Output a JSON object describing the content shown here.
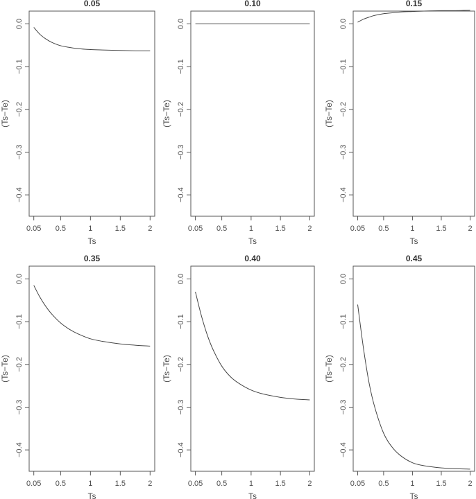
{
  "chart_data": [
    {
      "type": "line",
      "title": "0.05",
      "xlabel": "Ts",
      "ylabel": "(Ts−Te)",
      "xlim": [
        0.05,
        2
      ],
      "ylim": [
        -0.45,
        0.03
      ],
      "x_ticks": [
        0.05,
        0.5,
        1,
        1.5,
        2
      ],
      "x_tick_labels": [
        "0.05",
        "0.5",
        "1",
        "1.5",
        "2"
      ],
      "y_ticks": [
        0.0,
        -0.1,
        -0.2,
        -0.3,
        -0.4
      ],
      "y_tick_labels": [
        "0.0",
        "−0.1",
        "−0.2",
        "−0.3",
        "−0.4"
      ],
      "x": [
        0.05,
        0.15,
        0.25,
        0.35,
        0.5,
        0.65,
        0.8,
        1.0,
        1.2,
        1.5,
        1.75,
        2.0
      ],
      "y": [
        -0.008,
        -0.024,
        -0.035,
        -0.043,
        -0.051,
        -0.055,
        -0.058,
        -0.06,
        -0.061,
        -0.062,
        -0.063,
        -0.063
      ]
    },
    {
      "type": "line",
      "title": "0.10",
      "xlabel": "Ts",
      "ylabel": "(Ts−Te)",
      "xlim": [
        0.05,
        2
      ],
      "ylim": [
        -0.45,
        0.03
      ],
      "x_ticks": [
        0.05,
        0.5,
        1,
        1.5,
        2
      ],
      "x_tick_labels": [
        "0.05",
        "0.5",
        "1",
        "1.5",
        "2"
      ],
      "y_ticks": [
        0.0,
        -0.1,
        -0.2,
        -0.3,
        -0.4
      ],
      "y_tick_labels": [
        "0.0",
        "−0.1",
        "−0.2",
        "−0.3",
        "−0.4"
      ],
      "x": [
        0.05,
        0.5,
        1.0,
        1.5,
        2.0
      ],
      "y": [
        0.0,
        0.0,
        0.0,
        0.0,
        0.0
      ]
    },
    {
      "type": "line",
      "title": "0.15",
      "xlabel": "Ts",
      "ylabel": "(Ts−Te)",
      "xlim": [
        0.05,
        2
      ],
      "ylim": [
        -0.45,
        0.03
      ],
      "x_ticks": [
        0.05,
        0.5,
        1,
        1.5,
        2
      ],
      "x_tick_labels": [
        "0.05",
        "0.5",
        "1",
        "1.5",
        "2"
      ],
      "y_ticks": [
        0.0,
        -0.1,
        -0.2,
        -0.3,
        -0.4
      ],
      "y_tick_labels": [
        "0.0",
        "−0.1",
        "−0.2",
        "−0.3",
        "−0.4"
      ],
      "x": [
        0.05,
        0.15,
        0.25,
        0.35,
        0.5,
        0.65,
        0.8,
        1.0,
        1.2,
        1.5,
        1.75,
        2.0
      ],
      "y": [
        0.004,
        0.011,
        0.016,
        0.02,
        0.024,
        0.026,
        0.028,
        0.029,
        0.03,
        0.031,
        0.031,
        0.032
      ]
    },
    {
      "type": "line",
      "title": "0.35",
      "xlabel": "Ts",
      "ylabel": "(Ts−Te)",
      "xlim": [
        0.05,
        2
      ],
      "ylim": [
        -0.45,
        0.03
      ],
      "x_ticks": [
        0.05,
        0.5,
        1,
        1.5,
        2
      ],
      "x_tick_labels": [
        "0.05",
        "0.5",
        "1",
        "1.5",
        "2"
      ],
      "y_ticks": [
        0.0,
        -0.1,
        -0.2,
        -0.3,
        -0.4
      ],
      "y_tick_labels": [
        "0.0",
        "−0.1",
        "−0.2",
        "−0.3",
        "−0.4"
      ],
      "x": [
        0.05,
        0.15,
        0.25,
        0.35,
        0.5,
        0.65,
        0.8,
        1.0,
        1.2,
        1.5,
        1.75,
        2.0
      ],
      "y": [
        -0.015,
        -0.042,
        -0.064,
        -0.082,
        -0.103,
        -0.118,
        -0.129,
        -0.14,
        -0.146,
        -0.152,
        -0.155,
        -0.157
      ]
    },
    {
      "type": "line",
      "title": "0.40",
      "xlabel": "Ts",
      "ylabel": "(Ts−Te)",
      "xlim": [
        0.05,
        2
      ],
      "ylim": [
        -0.45,
        0.03
      ],
      "x_ticks": [
        0.05,
        0.5,
        1,
        1.5,
        2
      ],
      "x_tick_labels": [
        "0.05",
        "0.5",
        "1",
        "1.5",
        "2"
      ],
      "y_ticks": [
        0.0,
        -0.1,
        -0.2,
        -0.3,
        -0.4
      ],
      "y_tick_labels": [
        "0.0",
        "−0.1",
        "−0.2",
        "−0.3",
        "−0.4"
      ],
      "x": [
        0.05,
        0.15,
        0.25,
        0.35,
        0.5,
        0.65,
        0.8,
        1.0,
        1.2,
        1.5,
        1.75,
        2.0
      ],
      "y": [
        -0.03,
        -0.085,
        -0.13,
        -0.165,
        -0.204,
        -0.229,
        -0.245,
        -0.26,
        -0.269,
        -0.277,
        -0.281,
        -0.283
      ]
    },
    {
      "type": "line",
      "title": "0.45",
      "xlabel": "Ts",
      "ylabel": "(Ts−Te)",
      "xlim": [
        0.05,
        2
      ],
      "ylim": [
        -0.45,
        0.03
      ],
      "x_ticks": [
        0.05,
        0.5,
        1,
        1.5,
        2
      ],
      "x_tick_labels": [
        "0.05",
        "0.5",
        "1",
        "1.5",
        "2"
      ],
      "y_ticks": [
        0.0,
        -0.1,
        -0.2,
        -0.3,
        -0.4
      ],
      "y_tick_labels": [
        "0.0",
        "−0.1",
        "−0.2",
        "−0.3",
        "−0.4"
      ],
      "x": [
        0.05,
        0.15,
        0.25,
        0.35,
        0.5,
        0.65,
        0.8,
        1.0,
        1.2,
        1.5,
        1.75,
        2.0
      ],
      "y": [
        -0.06,
        -0.162,
        -0.245,
        -0.302,
        -0.361,
        -0.394,
        -0.414,
        -0.43,
        -0.437,
        -0.442,
        -0.444,
        -0.445
      ]
    }
  ]
}
